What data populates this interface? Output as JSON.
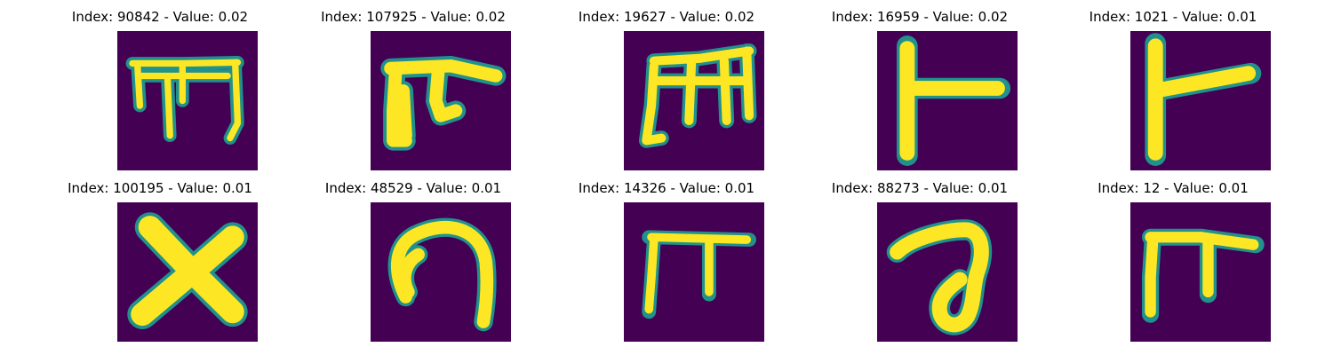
{
  "panels": [
    {
      "title": "Index: 90842 - Value: 0.02",
      "glyph": "comb-three-legs"
    },
    {
      "title": "Index: 107925 - Value: 0.02",
      "glyph": "thick-pi"
    },
    {
      "title": "Index: 19627 - Value: 0.02",
      "glyph": "m-shape"
    },
    {
      "title": "Index: 16959 - Value: 0.02",
      "glyph": "sideways-t"
    },
    {
      "title": "Index: 1021 - Value: 0.01",
      "glyph": "sideways-t-angled"
    },
    {
      "title": "Index: 100195 - Value: 0.01",
      "glyph": "x-cross"
    },
    {
      "title": "Index: 48529 - Value: 0.01",
      "glyph": "hook-arch"
    },
    {
      "title": "Index: 14326 - Value: 0.01",
      "glyph": "bar-two-legs"
    },
    {
      "title": "Index: 88273 - Value: 0.01",
      "glyph": "loop-a"
    },
    {
      "title": "Index: 12 - Value: 0.01",
      "glyph": "small-pi"
    }
  ],
  "colors": {
    "background": "#440154",
    "edge": "#21918c",
    "stroke": "#fde725"
  }
}
